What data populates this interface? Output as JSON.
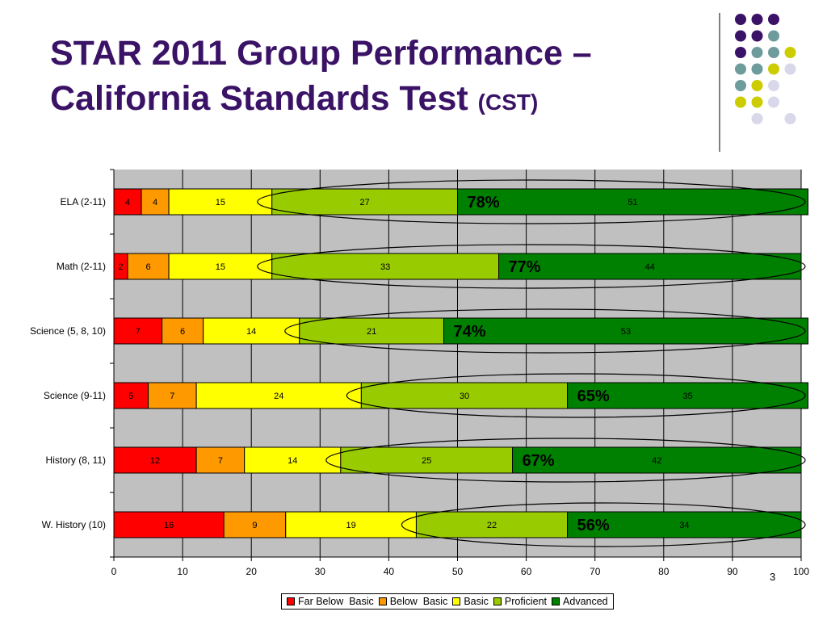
{
  "slide": {
    "title_main": "STAR 2011 Group Performance – California Standards Test",
    "title_sub": "(CST)",
    "slide_number": "3"
  },
  "colors": {
    "title": "#3a1266",
    "far_below_basic": "#ff0000",
    "below_basic": "#ff9900",
    "basic": "#ffff00",
    "proficient": "#99cc00",
    "advanced": "#008000",
    "plot_background": "#c0c0c0",
    "dot_purple": "#3a1266",
    "dot_teal": "#6e9c9c",
    "dot_olive": "#cccc00",
    "dot_lavender": "#d8d8ea"
  },
  "decoration": {
    "dot_grid": [
      [
        "purple",
        "purple",
        "purple",
        null
      ],
      [
        "purple",
        "purple",
        "teal",
        null
      ],
      [
        "purple",
        "teal",
        "teal",
        "olive"
      ],
      [
        "teal",
        "teal",
        "olive",
        "lavender"
      ],
      [
        "teal",
        "olive",
        "lavender",
        null
      ],
      [
        "olive",
        "olive",
        "lavender",
        null
      ],
      [
        null,
        "lavender",
        null,
        "lavender"
      ]
    ]
  },
  "chart_data": {
    "type": "bar",
    "orientation": "horizontal",
    "stacked": true,
    "categories": [
      "ELA (2-11)",
      "Math (2-11)",
      "Science (5, 8, 10)",
      "Science (9-11)",
      "History (8, 11)",
      "W. History (10)"
    ],
    "series": [
      {
        "name": "Far Below  Basic",
        "color": "#ff0000",
        "values": [
          4,
          2,
          7,
          5,
          12,
          16
        ]
      },
      {
        "name": "Below  Basic",
        "color": "#ff9900",
        "values": [
          4,
          6,
          6,
          7,
          7,
          9
        ]
      },
      {
        "name": "Basic",
        "color": "#ffff00",
        "values": [
          15,
          15,
          14,
          24,
          14,
          19
        ]
      },
      {
        "name": "Proficient",
        "color": "#99cc00",
        "values": [
          27,
          33,
          21,
          30,
          25,
          22
        ]
      },
      {
        "name": "Advanced",
        "color": "#008000",
        "values": [
          51,
          44,
          53,
          35,
          42,
          34
        ]
      }
    ],
    "annotations": [
      "78%",
      "77%",
      "74%",
      "65%",
      "67%",
      "56%"
    ],
    "x_ticks": [
      0,
      10,
      20,
      30,
      40,
      50,
      60,
      70,
      80,
      90,
      100
    ],
    "xlim": [
      0,
      100
    ],
    "grid": true,
    "legend_position": "bottom"
  }
}
